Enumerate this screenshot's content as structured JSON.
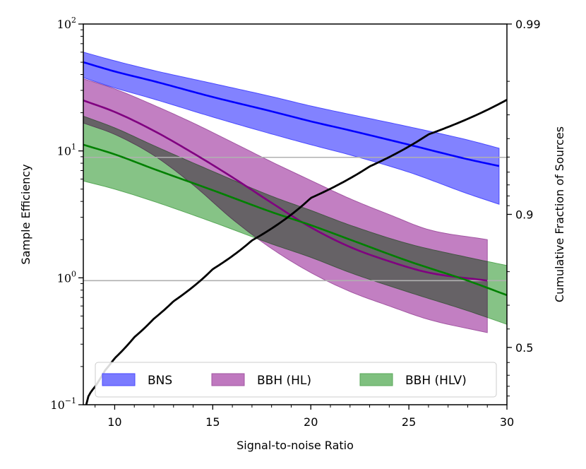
{
  "chart_data": {
    "type": "line",
    "title": "",
    "xlabel": "Signal-to-noise Ratio",
    "ylabel": "Sample Efficiency",
    "y2label": "Cumulative Fraction of Sources",
    "xlim": [
      8.4,
      30
    ],
    "ylim": [
      0.1,
      100
    ],
    "yscale": "log",
    "xticks": [
      10,
      15,
      20,
      25,
      30
    ],
    "yticks": [
      {
        "base": "10",
        "exp": "−1",
        "value": 0.1
      },
      {
        "base": "10",
        "exp": "0",
        "value": 1
      },
      {
        "base": "10",
        "exp": "1",
        "value": 10
      },
      {
        "base": "10",
        "exp": "2",
        "value": 100
      }
    ],
    "y2ticks": [
      {
        "label": "0.5",
        "value": 0.5
      },
      {
        "label": "0.9",
        "value": 0.9
      },
      {
        "label": "0.99",
        "value": 0.99
      }
    ],
    "hlines": [
      0.95,
      8.9
    ],
    "series": [
      {
        "name": "BNS",
        "color": "#0000ff",
        "fill": "#7b7bff",
        "edge": "#4a4aff",
        "x": [
          8.4,
          10,
          12,
          15,
          18,
          20,
          22,
          25,
          28,
          29.6
        ],
        "center": [
          50,
          42.3,
          35.4,
          26.6,
          20.5,
          17.1,
          14.5,
          11.2,
          8.6,
          7.6
        ],
        "upper": [
          60,
          51.3,
          43.0,
          34.0,
          26.8,
          22.6,
          19.4,
          15.5,
          12.2,
          10.5
        ],
        "lower": [
          37.8,
          31.4,
          25.6,
          18.5,
          13.6,
          11.2,
          9.3,
          6.8,
          4.6,
          3.8
        ]
      },
      {
        "name": "BBH (HL)",
        "color": "#800080",
        "fill": "#bf78bf",
        "edge": "#a256a2",
        "x": [
          8.4,
          10,
          12,
          14,
          16,
          18,
          20,
          22,
          24,
          26,
          29
        ],
        "center": [
          25,
          20.3,
          14.4,
          9.6,
          6.2,
          3.9,
          2.5,
          1.75,
          1.35,
          1.1,
          0.95
        ],
        "upper": [
          37,
          30.8,
          22.9,
          16.6,
          11.7,
          8.2,
          5.85,
          4.2,
          3.15,
          2.4,
          2.0
        ],
        "lower": [
          16.6,
          13.5,
          9.2,
          5.4,
          2.9,
          1.7,
          1.1,
          0.78,
          0.6,
          0.47,
          0.37
        ]
      },
      {
        "name": "BBH (HLV)",
        "color": "#008000",
        "fill": "#7fc07f",
        "edge": "#58a858",
        "x": [
          8.4,
          10,
          12,
          15,
          18,
          20,
          22,
          25,
          28,
          30
        ],
        "center": [
          11.2,
          9.4,
          7.2,
          4.9,
          3.3,
          2.6,
          2.0,
          1.35,
          0.95,
          0.73
        ],
        "upper": [
          18.8,
          15.2,
          11.0,
          6.9,
          4.4,
          3.4,
          2.6,
          1.85,
          1.45,
          1.25
        ],
        "lower": [
          5.8,
          5.0,
          4.0,
          2.75,
          1.85,
          1.45,
          1.1,
          0.77,
          0.55,
          0.43
        ]
      }
    ],
    "cumulative": {
      "name": "Cumulative Fraction of Sources",
      "color": "#000000",
      "x": [
        8.55,
        9,
        9.5,
        10,
        11,
        12,
        13,
        15,
        17,
        20,
        23,
        26,
        30
      ],
      "y2": [
        0.0,
        0.196,
        0.338,
        0.43,
        0.558,
        0.647,
        0.714,
        0.806,
        0.863,
        0.918,
        0.944,
        0.962,
        0.975
      ]
    },
    "legend": {
      "position": "lower-center",
      "entries": [
        "BNS",
        "BBH (HL)",
        "BBH (HLV)"
      ]
    }
  }
}
